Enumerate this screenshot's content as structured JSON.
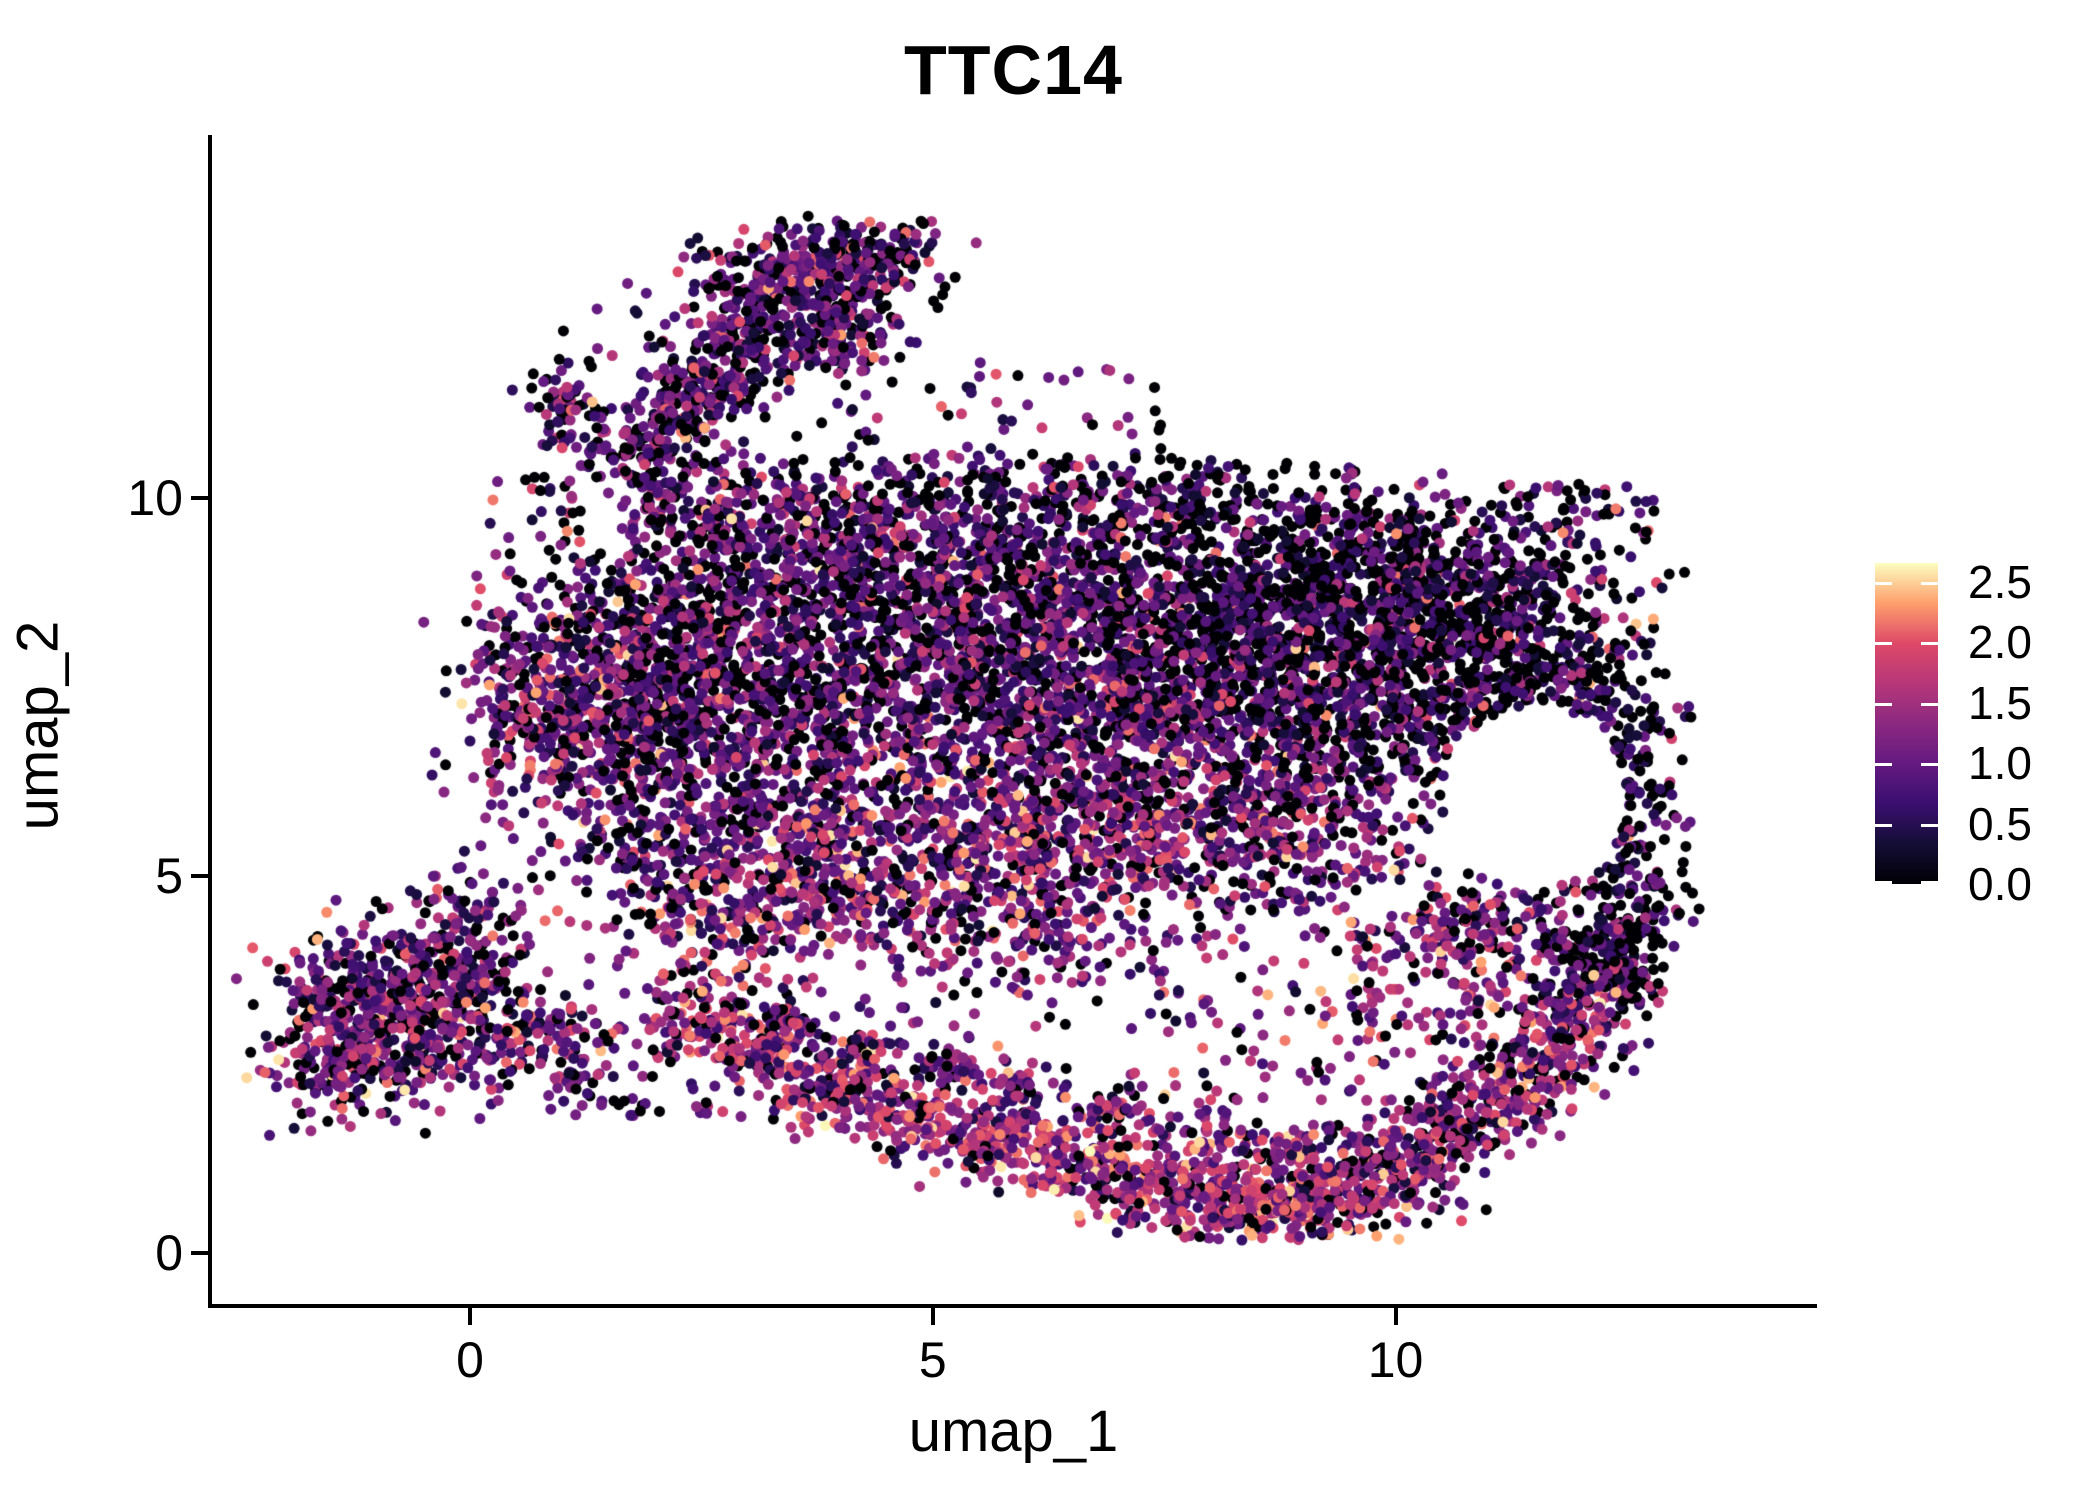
{
  "title": "TTC14",
  "axes": {
    "x_label": "umap_1",
    "y_label": "umap_2",
    "x_tick_labels": [
      "0",
      "5",
      "10"
    ],
    "y_tick_labels": [
      "0",
      "5",
      "10"
    ]
  },
  "legend": {
    "labels": [
      "2.5",
      "2.0",
      "1.5",
      "1.0",
      "0.5",
      "0.0"
    ],
    "tick_values": [
      2.5,
      2.0,
      1.5,
      1.0,
      0.5,
      0.0
    ]
  },
  "colors": {
    "background": "#ffffff",
    "axis": "#000000",
    "text": "#000000",
    "colormap_name": "magma",
    "magma_stops": [
      [
        0.0,
        "#000004"
      ],
      [
        0.125,
        "#140e36"
      ],
      [
        0.25,
        "#3b0f70"
      ],
      [
        0.375,
        "#641a80"
      ],
      [
        0.5,
        "#8c2981"
      ],
      [
        0.625,
        "#b73779"
      ],
      [
        0.75,
        "#de4968"
      ],
      [
        0.875,
        "#fe9f6d"
      ],
      [
        1.0,
        "#fcfdbf"
      ]
    ]
  },
  "chart_data": {
    "type": "scatter",
    "title": "TTC14",
    "xlabel": "umap_1",
    "ylabel": "umap_2",
    "xlim": [
      -2.8,
      14.5
    ],
    "ylim": [
      -0.7,
      14.8
    ],
    "x_ticks": [
      0,
      5,
      10
    ],
    "y_ticks": [
      0,
      5,
      10
    ],
    "grid": false,
    "legend_position": "right",
    "color_scale": {
      "name": "magma",
      "domain": [
        0,
        2.66
      ],
      "legend_ticks": [
        0.0,
        0.5,
        1.0,
        1.5,
        2.0,
        2.5
      ]
    },
    "point_radius_px": 5.5,
    "n_points_approx": 14000,
    "seed": 1337,
    "value_mixes": {
      "dark": {
        "p0": 0.42,
        "bins": [
          [
            0.25,
            0.7,
            0.24
          ],
          [
            0.7,
            1.2,
            0.22
          ],
          [
            1.2,
            1.7,
            0.08
          ],
          [
            1.7,
            2.2,
            0.035
          ],
          [
            2.2,
            2.6,
            0.005
          ]
        ]
      },
      "mid": {
        "p0": 0.26,
        "bins": [
          [
            0.25,
            0.7,
            0.2
          ],
          [
            0.7,
            1.2,
            0.3
          ],
          [
            1.2,
            1.7,
            0.16
          ],
          [
            1.7,
            2.2,
            0.07
          ],
          [
            2.2,
            2.6,
            0.01
          ]
        ]
      },
      "warm": {
        "p0": 0.17,
        "bins": [
          [
            0.25,
            0.7,
            0.14
          ],
          [
            0.7,
            1.2,
            0.25
          ],
          [
            1.2,
            1.7,
            0.26
          ],
          [
            1.7,
            2.2,
            0.14
          ],
          [
            2.2,
            2.6,
            0.04
          ]
        ]
      },
      "hot": {
        "p0": 0.1,
        "bins": [
          [
            0.25,
            0.7,
            0.1
          ],
          [
            0.7,
            1.2,
            0.18
          ],
          [
            1.2,
            1.7,
            0.28
          ],
          [
            1.7,
            2.2,
            0.28
          ],
          [
            2.2,
            2.65,
            0.06
          ]
        ]
      }
    },
    "kernels": {
      "mass": [
        [
          0.8,
          7.3,
          0.45,
          0.75,
          330,
          "warm"
        ],
        [
          1.8,
          8.0,
          0.7,
          0.7,
          380,
          "mid"
        ],
        [
          1.9,
          6.6,
          0.7,
          0.6,
          300,
          "mid"
        ],
        [
          3.0,
          8.6,
          0.9,
          0.75,
          420,
          "mid"
        ],
        [
          3.1,
          7.0,
          0.9,
          0.85,
          420,
          "mid"
        ],
        [
          4.5,
          9.3,
          1.0,
          0.65,
          420,
          "mid"
        ],
        [
          4.6,
          7.6,
          1.0,
          0.9,
          450,
          "mid"
        ],
        [
          6.0,
          8.8,
          1.0,
          0.85,
          520,
          "mid"
        ],
        [
          6.1,
          7.0,
          1.0,
          0.85,
          450,
          "mid"
        ],
        [
          7.5,
          8.6,
          1.0,
          0.85,
          600,
          "dark"
        ],
        [
          7.6,
          6.9,
          0.95,
          0.8,
          480,
          "mid"
        ],
        [
          8.9,
          8.0,
          0.9,
          0.8,
          560,
          "dark"
        ],
        [
          9.9,
          8.7,
          0.85,
          0.6,
          420,
          "dark"
        ],
        [
          10.0,
          7.3,
          0.8,
          0.7,
          380,
          "dark"
        ],
        [
          11.1,
          8.2,
          0.7,
          0.55,
          300,
          "dark"
        ],
        [
          9.3,
          5.9,
          0.65,
          0.7,
          240,
          "mid"
        ],
        [
          8.0,
          5.5,
          0.8,
          0.6,
          280,
          "warm"
        ],
        [
          6.6,
          5.4,
          0.9,
          0.6,
          300,
          "warm"
        ],
        [
          5.0,
          5.6,
          0.9,
          0.6,
          280,
          "warm"
        ],
        [
          3.4,
          5.5,
          0.7,
          0.55,
          220,
          "warm"
        ],
        [
          2.0,
          5.3,
          0.5,
          0.45,
          130,
          "mid"
        ],
        [
          11.9,
          7.5,
          0.5,
          0.6,
          170,
          "dark"
        ],
        [
          12.6,
          6.3,
          0.35,
          0.9,
          170,
          "dark"
        ],
        [
          12.3,
          4.6,
          0.5,
          0.45,
          130,
          "dark"
        ],
        [
          10.9,
          4.3,
          0.55,
          0.5,
          150,
          "warm"
        ],
        [
          4.0,
          4.6,
          0.8,
          0.4,
          170,
          "warm"
        ],
        [
          5.8,
          4.4,
          0.8,
          0.4,
          170,
          "warm"
        ],
        [
          2.6,
          4.4,
          0.6,
          0.4,
          130,
          "warm"
        ],
        [
          6.8,
          10.1,
          1.2,
          0.25,
          150,
          "dark"
        ],
        [
          9.2,
          9.6,
          1.0,
          0.3,
          150,
          "dark"
        ],
        [
          11.2,
          9.0,
          0.8,
          0.3,
          120,
          "dark"
        ],
        [
          3.2,
          9.9,
          0.8,
          0.3,
          100,
          "mid"
        ]
      ],
      "arm": [
        [
          1.05,
          11.3,
          0.22,
          0.33,
          70,
          "mid"
        ],
        [
          1.8,
          10.6,
          0.3,
          0.3,
          80,
          "mid"
        ],
        [
          2.3,
          11.1,
          0.3,
          0.35,
          110,
          "mid"
        ],
        [
          2.75,
          11.75,
          0.32,
          0.38,
          130,
          "mid"
        ],
        [
          3.2,
          12.4,
          0.35,
          0.4,
          150,
          "mid"
        ],
        [
          3.7,
          13.0,
          0.45,
          0.32,
          170,
          "mid"
        ],
        [
          4.35,
          13.25,
          0.4,
          0.25,
          120,
          "dark"
        ],
        [
          4.1,
          12.2,
          0.35,
          0.3,
          110,
          "mid"
        ],
        [
          2.3,
          10.0,
          0.4,
          0.35,
          70,
          "mid"
        ]
      ],
      "blob": [
        [
          -1.15,
          3.4,
          0.5,
          0.45,
          260,
          "mid"
        ],
        [
          -0.35,
          3.0,
          0.55,
          0.5,
          260,
          "warm"
        ],
        [
          -1.35,
          2.45,
          0.45,
          0.35,
          180,
          "warm"
        ],
        [
          -0.1,
          3.9,
          0.45,
          0.35,
          120,
          "mid"
        ],
        [
          0.6,
          2.8,
          0.4,
          0.35,
          90,
          "mid"
        ],
        [
          -0.2,
          4.6,
          0.3,
          0.2,
          25,
          "mid"
        ]
      ],
      "arc": [
        [
          2.5,
          3.1,
          0.3,
          0.3,
          90,
          "hot"
        ],
        [
          3.1,
          2.6,
          0.3,
          0.25,
          90,
          "hot"
        ],
        [
          3.9,
          2.15,
          0.35,
          0.25,
          110,
          "hot"
        ],
        [
          4.8,
          1.8,
          0.4,
          0.25,
          120,
          "hot"
        ],
        [
          5.7,
          1.5,
          0.4,
          0.25,
          130,
          "hot"
        ],
        [
          6.6,
          1.2,
          0.4,
          0.25,
          140,
          "hot"
        ],
        [
          7.5,
          0.85,
          0.4,
          0.25,
          150,
          "hot"
        ],
        [
          8.4,
          0.6,
          0.4,
          0.25,
          160,
          "hot"
        ],
        [
          9.2,
          0.7,
          0.4,
          0.28,
          170,
          "hot"
        ],
        [
          10.0,
          1.1,
          0.38,
          0.3,
          170,
          "warm"
        ],
        [
          10.7,
          1.7,
          0.35,
          0.3,
          160,
          "warm"
        ],
        [
          11.4,
          2.4,
          0.35,
          0.3,
          150,
          "warm"
        ],
        [
          12.0,
          3.1,
          0.3,
          0.3,
          130,
          "warm"
        ],
        [
          12.35,
          3.8,
          0.28,
          0.3,
          110,
          "dark"
        ],
        [
          3.3,
          3.0,
          0.25,
          0.2,
          50,
          "warm"
        ],
        [
          4.2,
          2.7,
          0.3,
          0.2,
          50,
          "mid"
        ],
        [
          5.1,
          2.45,
          0.3,
          0.2,
          50,
          "mid"
        ],
        [
          6.0,
          2.1,
          0.3,
          0.2,
          55,
          "warm"
        ],
        [
          7.0,
          1.8,
          0.3,
          0.2,
          55,
          "warm"
        ],
        [
          8.0,
          1.5,
          0.3,
          0.2,
          55,
          "warm"
        ],
        [
          8.9,
          1.35,
          0.3,
          0.2,
          55,
          "warm"
        ]
      ]
    },
    "boxes": [
      [
        1.6,
        10.4,
        4.6,
        13.5,
        90,
        "mid"
      ],
      [
        0.9,
        1.8,
        2.0,
        3.2,
        60,
        "mid"
      ],
      [
        2.0,
        1.8,
        4.0,
        4.2,
        70,
        "mid"
      ],
      [
        7.0,
        2.0,
        11.3,
        4.3,
        160,
        "warm"
      ],
      [
        9.5,
        3.0,
        11.5,
        4.5,
        80,
        "warm"
      ],
      [
        11.5,
        3.2,
        12.6,
        4.4,
        60,
        "dark"
      ],
      [
        4.8,
        10.3,
        7.5,
        11.8,
        40,
        "dark"
      ],
      [
        0.2,
        9.2,
        1.2,
        10.3,
        25,
        "mid"
      ],
      [
        11.0,
        9.3,
        12.8,
        10.2,
        60,
        "dark"
      ],
      [
        -0.5,
        4.3,
        0.8,
        5.4,
        25,
        "mid"
      ],
      [
        4.0,
        3.0,
        7.0,
        3.9,
        25,
        "mid"
      ]
    ],
    "void_region": {
      "cx": 11.5,
      "cy": 6.05,
      "rx": 1.0,
      "ry": 1.2
    },
    "data_clip": {
      "x_min": -2.6,
      "x_max": 13.4,
      "y_min": 0.15,
      "y_max": 13.75,
      "mass_y_max": 10.6
    }
  }
}
